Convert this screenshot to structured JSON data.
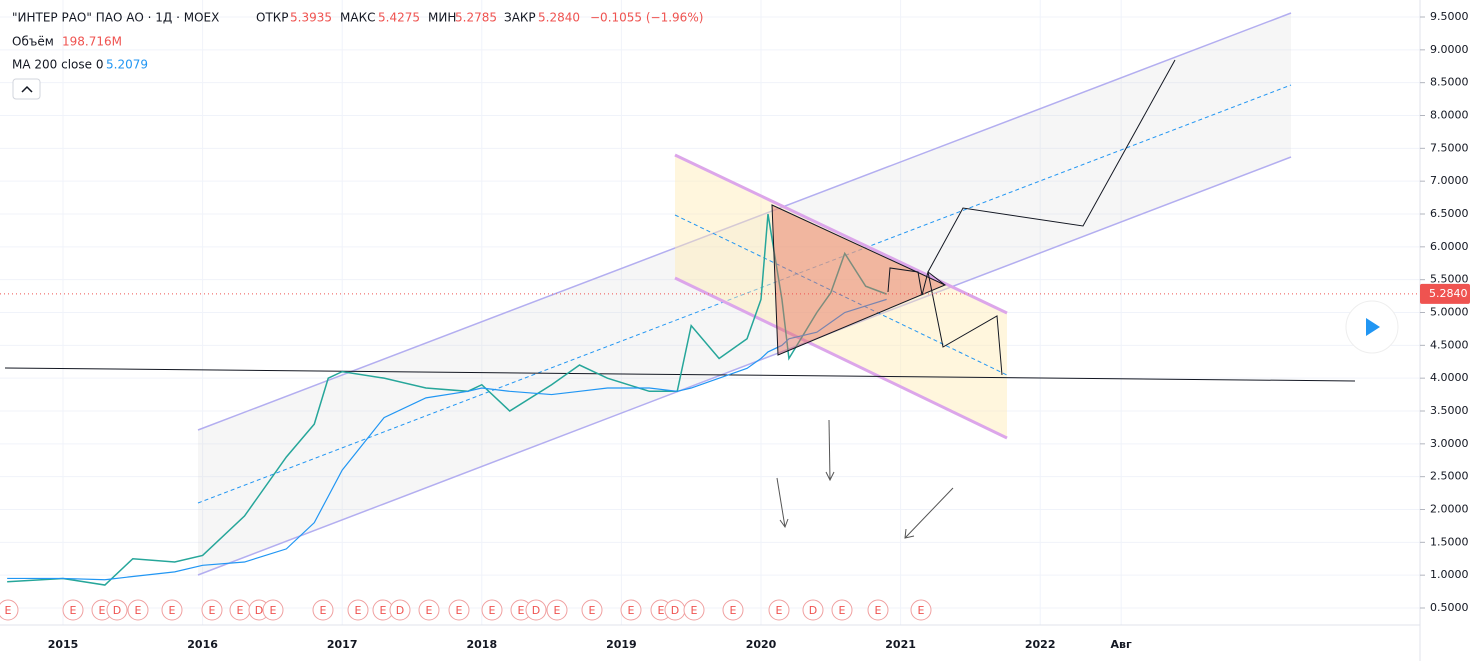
{
  "chart_data": {
    "type": "line",
    "title": "\"ИНТЕР РАО\" ПАО АО · 1Д · MOEX",
    "ohlc": {
      "open_label": "ОТКР",
      "open": "5.3935",
      "high_label": "МАКС",
      "high": "5.4275",
      "low_label": "МИН",
      "low": "5.2785",
      "close_label": "ЗАКР",
      "close": "5.2840",
      "change": "−0.1055 (−1.96%)"
    },
    "volume_label": "Объём",
    "volume_value": "198.716M",
    "ma_label": "MA 200 close 0",
    "ma_value": "5.2079",
    "x": [
      2014.6,
      2015.0,
      2015.3,
      2015.5,
      2015.8,
      2016.0,
      2016.3,
      2016.6,
      2016.8,
      2016.9,
      2017.0,
      2017.3,
      2017.6,
      2017.9,
      2018.0,
      2018.2,
      2018.5,
      2018.7,
      2018.9,
      2019.2,
      2019.4,
      2019.5,
      2019.7,
      2019.9,
      2020.0,
      2020.05,
      2020.15,
      2020.2,
      2020.4,
      2020.5,
      2020.6,
      2020.75,
      2020.9
    ],
    "series": [
      {
        "name": "price",
        "color": "#26a69a",
        "values": [
          0.9,
          0.95,
          0.85,
          1.25,
          1.2,
          1.3,
          1.9,
          2.8,
          3.3,
          4.0,
          4.1,
          4.0,
          3.85,
          3.8,
          3.9,
          3.5,
          3.9,
          4.2,
          4.0,
          3.8,
          3.8,
          4.8,
          4.3,
          4.6,
          5.2,
          6.5,
          5.2,
          4.3,
          5.0,
          5.3,
          5.9,
          5.4,
          5.28
        ]
      },
      {
        "name": "ma",
        "color": "#2196f3",
        "values": [
          0.95,
          0.95,
          0.93,
          0.98,
          1.05,
          1.15,
          1.2,
          1.4,
          1.8,
          2.2,
          2.6,
          3.4,
          3.7,
          3.8,
          3.85,
          3.8,
          3.75,
          3.8,
          3.85,
          3.85,
          3.8,
          3.85,
          4.0,
          4.15,
          4.3,
          4.4,
          4.5,
          4.6,
          4.7,
          4.85,
          5.0,
          5.1,
          5.2
        ]
      }
    ],
    "last_price": {
      "value": 5.284,
      "label": "5.2840"
    },
    "events": [
      "E",
      "E",
      "E",
      "D",
      "E",
      "E",
      "E",
      "E",
      "D",
      "E",
      "E",
      "E",
      "E",
      "D",
      "E",
      "E",
      "E",
      "E",
      "D",
      "E",
      "E",
      "E",
      "E",
      "D",
      "E",
      "E",
      "E",
      "D",
      "E",
      "E",
      "E"
    ],
    "ylim": [
      0.5,
      9.5
    ],
    "yticks": [
      {
        "value": 0.5,
        "label": "0.5000"
      },
      {
        "value": 1,
        "label": "1.0000"
      },
      {
        "value": 1.5,
        "label": "1.5000"
      },
      {
        "value": 2,
        "label": "2.0000"
      },
      {
        "value": 2.5,
        "label": "2.5000"
      },
      {
        "value": 3,
        "label": "3.0000"
      },
      {
        "value": 3.5,
        "label": "3.5000"
      },
      {
        "value": 4,
        "label": "4.0000"
      },
      {
        "value": 4.5,
        "label": "4.5000"
      },
      {
        "value": 5,
        "label": "5.0000"
      },
      {
        "value": 5.5,
        "label": "5.5000"
      },
      {
        "value": 6,
        "label": "6.0000"
      },
      {
        "value": 6.5,
        "label": "6.5000"
      },
      {
        "value": 7,
        "label": "7.0000"
      },
      {
        "value": 7.5,
        "label": "7.5000"
      },
      {
        "value": 8,
        "label": "8.0000"
      },
      {
        "value": 8.5,
        "label": "8.5000"
      },
      {
        "value": 9,
        "label": "9.0000"
      },
      {
        "value": 9.5,
        "label": "9.5000"
      }
    ],
    "xticks": [
      2015,
      2016,
      2017,
      2018,
      2019,
      2020,
      2021,
      2022,
      {
        "value": 2022.58,
        "label": "Авг"
      }
    ],
    "grid": true
  }
}
